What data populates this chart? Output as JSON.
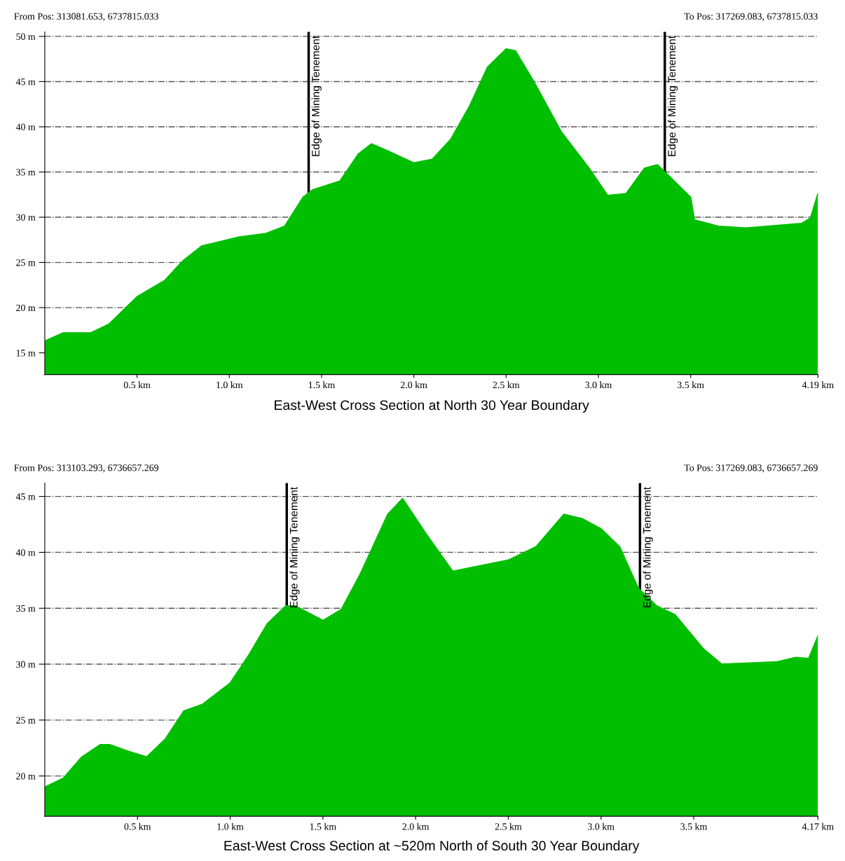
{
  "chart_data": [
    {
      "type": "area",
      "title": "East-West Cross Section at North 30 Year Boundary",
      "annotations": [
        "From Pos: 313081.653, 6737815.033",
        "To Pos: 317269.083, 6737815.033"
      ],
      "series": [
        {
          "color": "#00bf00",
          "x": [
            0,
            0.1,
            0.13,
            0.25,
            0.35,
            0.45,
            0.5,
            0.65,
            0.75,
            0.85,
            0.95,
            1.05,
            1.2,
            1.3,
            1.4,
            1.45,
            1.6,
            1.7,
            1.77,
            1.85,
            2.0,
            2.1,
            2.2,
            2.3,
            2.4,
            2.5,
            2.55,
            2.65,
            2.8,
            2.95,
            3.05,
            3.15,
            3.25,
            3.32,
            3.4,
            3.5,
            3.52,
            3.65,
            3.8,
            4.1,
            4.15,
            4.19
          ],
          "values": [
            16.3,
            17.2,
            17.2,
            17.2,
            18.2,
            20.2,
            21.2,
            23,
            25.2,
            26.8,
            27.3,
            27.8,
            28.2,
            29,
            32.2,
            33,
            34,
            37,
            38.1,
            37.4,
            36,
            36.4,
            38.6,
            42.2,
            46.6,
            48.6,
            48.4,
            45,
            39.4,
            35.4,
            32.4,
            32.6,
            35.4,
            35.8,
            34.2,
            32.2,
            29.7,
            29.0,
            28.8,
            29.3,
            29.9,
            32.6
          ]
        }
      ],
      "xlim": [
        0,
        4.19
      ],
      "ylim": [
        12.6,
        50.5
      ],
      "xticks": [
        {
          "value": 0.5,
          "label": "0.5 km"
        },
        {
          "value": 1.0,
          "label": "1.0 km"
        },
        {
          "value": 1.5,
          "label": "1.5 km"
        },
        {
          "value": 2.0,
          "label": "2.0 km"
        },
        {
          "value": 2.5,
          "label": "2.5 km"
        },
        {
          "value": 3.0,
          "label": "3.0 km"
        },
        {
          "value": 3.5,
          "label": "3.5 km"
        },
        {
          "value": 4.19,
          "label": "4.19 km"
        }
      ],
      "yticks": [
        {
          "value": 15,
          "label": "15 m"
        },
        {
          "value": 20,
          "label": "20 m"
        },
        {
          "value": 25,
          "label": "25 m"
        },
        {
          "value": 30,
          "label": "30 m"
        },
        {
          "value": 35,
          "label": "35 m"
        },
        {
          "value": 40,
          "label": "40 m"
        },
        {
          "value": 45,
          "label": "45 m"
        },
        {
          "value": 50,
          "label": "50 m"
        }
      ],
      "ref_lines": [
        {
          "axis": "x",
          "value": 1.43,
          "label": "Edge of Mining Tenement",
          "color": "#000000"
        },
        {
          "axis": "x",
          "value": 3.36,
          "label": "Edge of Mining Tenement",
          "color": "#000000"
        }
      ],
      "grid": "y",
      "line_style": "solid"
    },
    {
      "type": "area",
      "title": "East-West Cross Section at ~520m North of South 30 Year Boundary",
      "annotations": [
        "From Pos: 313103.293, 6736657.269",
        "To Pos: 317269.083, 6736657.269"
      ],
      "series": [
        {
          "color": "#00bf00",
          "x": [
            0,
            0.1,
            0.2,
            0.3,
            0.35,
            0.45,
            0.55,
            0.65,
            0.75,
            0.85,
            1.0,
            1.1,
            1.2,
            1.3,
            1.35,
            1.5,
            1.6,
            1.7,
            1.85,
            1.93,
            2.05,
            2.2,
            2.35,
            2.5,
            2.65,
            2.8,
            2.9,
            3.0,
            3.1,
            3.2,
            3.3,
            3.4,
            3.55,
            3.65,
            3.8,
            3.95,
            4.05,
            4.12,
            4.17
          ],
          "values": [
            19.0,
            19.8,
            21.7,
            22.8,
            22.8,
            22.2,
            21.7,
            23.3,
            25.8,
            26.4,
            28.3,
            30.8,
            33.6,
            35.2,
            35.2,
            33.9,
            34.9,
            38.0,
            43.4,
            44.8,
            41.8,
            38.3,
            38.8,
            39.3,
            40.5,
            43.4,
            43,
            42.1,
            40.5,
            36.8,
            35.2,
            34.4,
            31.4,
            30,
            30.1,
            30.2,
            30.6,
            30.5,
            32.5
          ]
        }
      ],
      "xlim": [
        0,
        4.17
      ],
      "ylim": [
        16.4,
        46.2
      ],
      "xticks": [
        {
          "value": 0.5,
          "label": "0.5 km"
        },
        {
          "value": 1.0,
          "label": "1.0 km"
        },
        {
          "value": 1.5,
          "label": "1.5 km"
        },
        {
          "value": 2.0,
          "label": "2.0 km"
        },
        {
          "value": 2.5,
          "label": "2.5 km"
        },
        {
          "value": 3.0,
          "label": "3.0 km"
        },
        {
          "value": 3.5,
          "label": "3.5 km"
        },
        {
          "value": 4.17,
          "label": "4.17 km"
        }
      ],
      "yticks": [
        {
          "value": 20,
          "label": "20 m"
        },
        {
          "value": 25,
          "label": "25 m"
        },
        {
          "value": 30,
          "label": "30 m"
        },
        {
          "value": 35,
          "label": "35 m"
        },
        {
          "value": 40,
          "label": "40 m"
        },
        {
          "value": 45,
          "label": "45 m"
        }
      ],
      "ref_lines": [
        {
          "axis": "x",
          "value": 1.305,
          "label": "Edge of Mining Tenement",
          "color": "#000000"
        },
        {
          "axis": "x",
          "value": 3.21,
          "label": "Edge of Mining Tenement",
          "color": "#000000"
        }
      ],
      "grid": "y",
      "line_style": "solid"
    }
  ]
}
